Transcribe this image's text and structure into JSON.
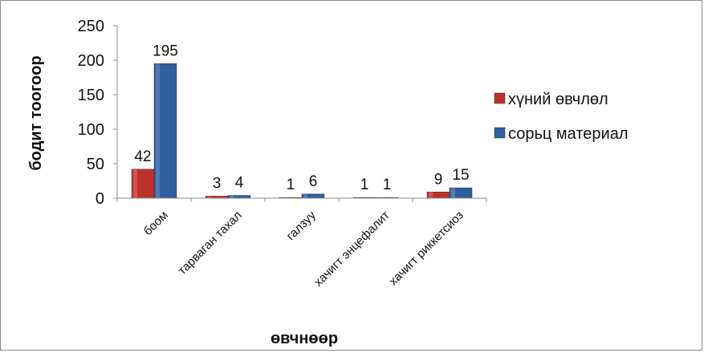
{
  "chart_data": {
    "type": "bar",
    "title": "",
    "xlabel": "өвчнөөр",
    "ylabel": "бодит тоогоор",
    "ylim": [
      0,
      250
    ],
    "yticks": [
      0,
      50,
      100,
      150,
      200,
      250
    ],
    "grid": false,
    "legend_position": "right",
    "categories": [
      "боом",
      "тарваган тахал",
      "галзуу",
      "хачигт энцефалит",
      "хачигт риккетсиоз"
    ],
    "series": [
      {
        "name": "хүний өвчлөл",
        "color": "#c0302a",
        "values": [
          42,
          3,
          1,
          1,
          9
        ]
      },
      {
        "name": "сорьц материал",
        "color": "#2f5d9e",
        "values": [
          195,
          4,
          6,
          1,
          15
        ]
      }
    ]
  }
}
